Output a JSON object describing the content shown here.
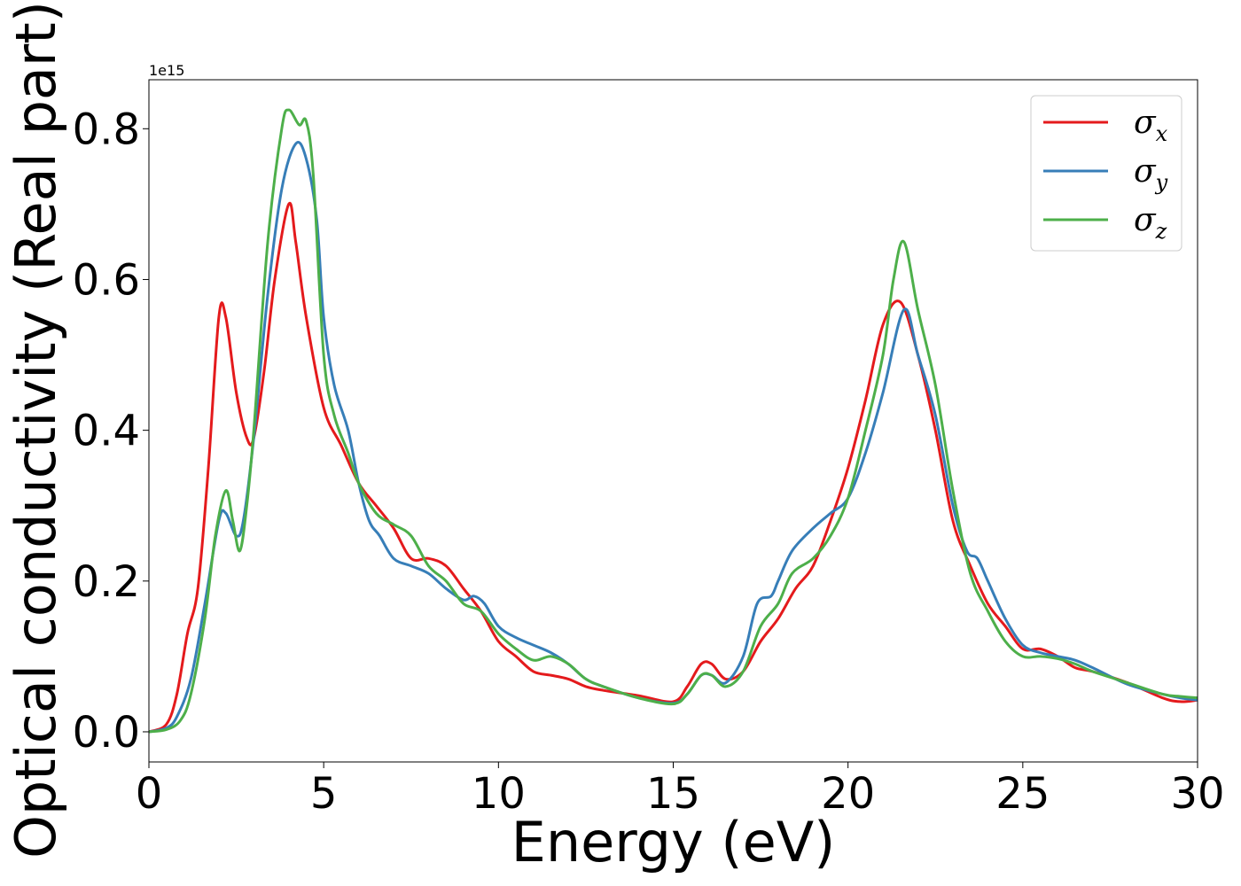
{
  "chart_data": {
    "type": "line",
    "xlabel": "Energy (eV)",
    "ylabel": "Optical conductivity (Real part)",
    "y_offset_text": "1e15",
    "y_scale_exponent": 15,
    "xlim": [
      0,
      30
    ],
    "ylim": [
      -0.04,
      0.865
    ],
    "x_ticks": [
      0,
      5,
      10,
      15,
      20,
      25,
      30
    ],
    "x_tick_labels": [
      "0",
      "5",
      "10",
      "15",
      "20",
      "25",
      "30"
    ],
    "y_ticks": [
      0.0,
      0.2,
      0.4,
      0.6,
      0.8
    ],
    "y_tick_labels": [
      "0.0",
      "0.2",
      "0.4",
      "0.6",
      "0.8"
    ],
    "grid": false,
    "legend_position": "top-right",
    "series": [
      {
        "name": "σx",
        "legend_base": "σ",
        "legend_sub": "x",
        "color": "#e41a1c",
        "points": [
          [
            0,
            0
          ],
          [
            0.5,
            0.01
          ],
          [
            0.8,
            0.05
          ],
          [
            1.1,
            0.13
          ],
          [
            1.4,
            0.19
          ],
          [
            1.7,
            0.35
          ],
          [
            2.0,
            0.55
          ],
          [
            2.2,
            0.55
          ],
          [
            2.5,
            0.45
          ],
          [
            2.8,
            0.39
          ],
          [
            3.0,
            0.39
          ],
          [
            3.3,
            0.48
          ],
          [
            3.6,
            0.6
          ],
          [
            4.0,
            0.7
          ],
          [
            4.2,
            0.65
          ],
          [
            4.5,
            0.55
          ],
          [
            5.0,
            0.43
          ],
          [
            5.5,
            0.38
          ],
          [
            6.0,
            0.33
          ],
          [
            6.5,
            0.3
          ],
          [
            7.0,
            0.27
          ],
          [
            7.5,
            0.23
          ],
          [
            8.0,
            0.23
          ],
          [
            8.5,
            0.22
          ],
          [
            9.0,
            0.19
          ],
          [
            9.5,
            0.16
          ],
          [
            10.0,
            0.12
          ],
          [
            10.5,
            0.1
          ],
          [
            11.0,
            0.08
          ],
          [
            11.5,
            0.075
          ],
          [
            12.0,
            0.07
          ],
          [
            12.5,
            0.06
          ],
          [
            13.0,
            0.055
          ],
          [
            14.0,
            0.048
          ],
          [
            15.0,
            0.04
          ],
          [
            15.4,
            0.06
          ],
          [
            15.8,
            0.09
          ],
          [
            16.1,
            0.09
          ],
          [
            16.5,
            0.07
          ],
          [
            17.0,
            0.08
          ],
          [
            17.5,
            0.12
          ],
          [
            18.0,
            0.15
          ],
          [
            18.5,
            0.19
          ],
          [
            19.0,
            0.22
          ],
          [
            19.5,
            0.28
          ],
          [
            20.0,
            0.35
          ],
          [
            20.5,
            0.44
          ],
          [
            21.0,
            0.54
          ],
          [
            21.5,
            0.57
          ],
          [
            22.0,
            0.5
          ],
          [
            22.5,
            0.4
          ],
          [
            23.0,
            0.28
          ],
          [
            23.5,
            0.22
          ],
          [
            24.0,
            0.17
          ],
          [
            24.5,
            0.14
          ],
          [
            25.0,
            0.11
          ],
          [
            25.5,
            0.11
          ],
          [
            26.0,
            0.1
          ],
          [
            26.5,
            0.085
          ],
          [
            27.0,
            0.08
          ],
          [
            28.0,
            0.065
          ],
          [
            29.0,
            0.045
          ],
          [
            29.5,
            0.04
          ],
          [
            30.0,
            0.042
          ]
        ]
      },
      {
        "name": "σy",
        "legend_base": "σ",
        "legend_sub": "y",
        "color": "#377eb8",
        "points": [
          [
            0,
            0
          ],
          [
            0.5,
            0.005
          ],
          [
            0.8,
            0.02
          ],
          [
            1.2,
            0.07
          ],
          [
            1.6,
            0.17
          ],
          [
            2.0,
            0.28
          ],
          [
            2.2,
            0.29
          ],
          [
            2.5,
            0.26
          ],
          [
            2.7,
            0.28
          ],
          [
            3.0,
            0.39
          ],
          [
            3.4,
            0.58
          ],
          [
            3.8,
            0.72
          ],
          [
            4.2,
            0.78
          ],
          [
            4.5,
            0.76
          ],
          [
            4.8,
            0.68
          ],
          [
            5.0,
            0.55
          ],
          [
            5.3,
            0.46
          ],
          [
            5.7,
            0.4
          ],
          [
            6.0,
            0.33
          ],
          [
            6.3,
            0.28
          ],
          [
            6.6,
            0.26
          ],
          [
            7.0,
            0.23
          ],
          [
            7.5,
            0.22
          ],
          [
            8.0,
            0.21
          ],
          [
            8.5,
            0.19
          ],
          [
            9.0,
            0.175
          ],
          [
            9.3,
            0.18
          ],
          [
            9.6,
            0.17
          ],
          [
            10.0,
            0.14
          ],
          [
            10.5,
            0.125
          ],
          [
            11.0,
            0.115
          ],
          [
            11.5,
            0.105
          ],
          [
            12.0,
            0.09
          ],
          [
            12.5,
            0.07
          ],
          [
            13.0,
            0.06
          ],
          [
            14.0,
            0.045
          ],
          [
            15.0,
            0.038
          ],
          [
            15.4,
            0.05
          ],
          [
            15.8,
            0.075
          ],
          [
            16.1,
            0.075
          ],
          [
            16.5,
            0.065
          ],
          [
            17.0,
            0.1
          ],
          [
            17.4,
            0.17
          ],
          [
            17.8,
            0.18
          ],
          [
            18.0,
            0.2
          ],
          [
            18.4,
            0.24
          ],
          [
            19.0,
            0.27
          ],
          [
            19.5,
            0.29
          ],
          [
            20.0,
            0.31
          ],
          [
            20.5,
            0.37
          ],
          [
            21.0,
            0.45
          ],
          [
            21.6,
            0.56
          ],
          [
            22.0,
            0.5
          ],
          [
            22.5,
            0.42
          ],
          [
            23.0,
            0.3
          ],
          [
            23.4,
            0.24
          ],
          [
            23.7,
            0.23
          ],
          [
            24.0,
            0.2
          ],
          [
            24.5,
            0.15
          ],
          [
            25.0,
            0.115
          ],
          [
            25.5,
            0.105
          ],
          [
            26.0,
            0.1
          ],
          [
            26.5,
            0.095
          ],
          [
            27.0,
            0.085
          ],
          [
            28.0,
            0.063
          ],
          [
            29.0,
            0.05
          ],
          [
            29.5,
            0.045
          ],
          [
            30.0,
            0.042
          ]
        ]
      },
      {
        "name": "σz",
        "legend_base": "σ",
        "legend_sub": "z",
        "color": "#4daf4a",
        "points": [
          [
            0,
            0
          ],
          [
            0.5,
            0.003
          ],
          [
            0.9,
            0.015
          ],
          [
            1.2,
            0.05
          ],
          [
            1.6,
            0.15
          ],
          [
            1.9,
            0.26
          ],
          [
            2.2,
            0.32
          ],
          [
            2.4,
            0.28
          ],
          [
            2.6,
            0.24
          ],
          [
            2.8,
            0.3
          ],
          [
            3.0,
            0.4
          ],
          [
            3.4,
            0.65
          ],
          [
            3.8,
            0.8
          ],
          [
            4.0,
            0.825
          ],
          [
            4.3,
            0.805
          ],
          [
            4.5,
            0.81
          ],
          [
            4.7,
            0.74
          ],
          [
            5.0,
            0.5
          ],
          [
            5.3,
            0.42
          ],
          [
            5.7,
            0.37
          ],
          [
            6.0,
            0.33
          ],
          [
            6.5,
            0.29
          ],
          [
            7.0,
            0.275
          ],
          [
            7.5,
            0.26
          ],
          [
            8.0,
            0.22
          ],
          [
            8.5,
            0.2
          ],
          [
            9.0,
            0.17
          ],
          [
            9.5,
            0.16
          ],
          [
            10.0,
            0.13
          ],
          [
            10.5,
            0.11
          ],
          [
            11.0,
            0.095
          ],
          [
            11.5,
            0.1
          ],
          [
            12.0,
            0.09
          ],
          [
            12.5,
            0.07
          ],
          [
            13.0,
            0.06
          ],
          [
            14.0,
            0.045
          ],
          [
            15.0,
            0.037
          ],
          [
            15.4,
            0.05
          ],
          [
            15.8,
            0.075
          ],
          [
            16.1,
            0.075
          ],
          [
            16.5,
            0.06
          ],
          [
            17.0,
            0.08
          ],
          [
            17.5,
            0.14
          ],
          [
            18.0,
            0.17
          ],
          [
            18.4,
            0.21
          ],
          [
            19.0,
            0.23
          ],
          [
            19.5,
            0.26
          ],
          [
            20.0,
            0.31
          ],
          [
            20.5,
            0.4
          ],
          [
            21.0,
            0.5
          ],
          [
            21.3,
            0.6
          ],
          [
            21.6,
            0.65
          ],
          [
            22.0,
            0.56
          ],
          [
            22.5,
            0.46
          ],
          [
            23.0,
            0.32
          ],
          [
            23.5,
            0.21
          ],
          [
            24.0,
            0.16
          ],
          [
            24.5,
            0.12
          ],
          [
            25.0,
            0.1
          ],
          [
            25.5,
            0.1
          ],
          [
            26.0,
            0.097
          ],
          [
            26.5,
            0.09
          ],
          [
            27.0,
            0.08
          ],
          [
            28.0,
            0.065
          ],
          [
            29.0,
            0.05
          ],
          [
            29.5,
            0.047
          ],
          [
            30.0,
            0.045
          ]
        ]
      }
    ]
  }
}
